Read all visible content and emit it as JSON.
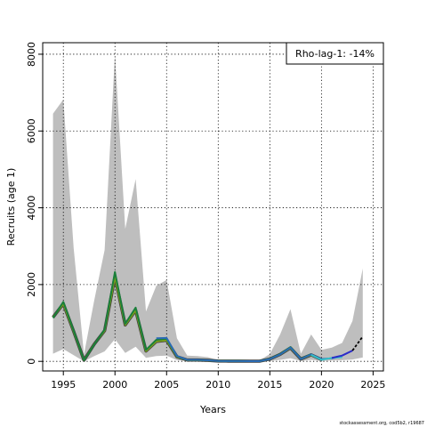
{
  "chart_data": {
    "type": "line",
    "xlabel": "Years",
    "ylabel": "Recruits (age 1)",
    "xlim": [
      1993,
      2026
    ],
    "ylim": [
      -250,
      8300
    ],
    "x_ticks": [
      1995,
      2000,
      2005,
      2010,
      2015,
      2020,
      2025
    ],
    "y_ticks": [
      0,
      2000,
      4000,
      6000,
      8000
    ],
    "grid": true,
    "grid_style": "dotted",
    "legend": {
      "text": "Rho-lag-1: -14%",
      "placement": "top-right"
    },
    "credit": "stockassessment.org, cod5b2, r19687",
    "colors": {
      "band": "#bebebe",
      "outline": "#404040",
      "main": "#7fa319",
      "peels": [
        "#1a7f3a",
        "#2a6bb4",
        "#36c0c8",
        "#2b2bc9"
      ],
      "terminal": "#000000"
    },
    "band": {
      "x": [
        1994,
        1995,
        1996,
        1997,
        1998,
        1999,
        2000,
        2001,
        2002,
        2003,
        2004,
        2005,
        2006,
        2007,
        2008,
        2009,
        2010,
        2011,
        2012,
        2013,
        2014,
        2015,
        2016,
        2017,
        2018,
        2019,
        2020,
        2021,
        2022,
        2023,
        2024
      ],
      "upper": [
        6450,
        6820,
        2950,
        180,
        1600,
        2900,
        8000,
        3450,
        4750,
        1300,
        1970,
        2120,
        600,
        150,
        140,
        110,
        30,
        25,
        20,
        20,
        25,
        190,
        700,
        1360,
        200,
        700,
        300,
        360,
        480,
        1050,
        2420
      ],
      "lower": [
        200,
        320,
        160,
        0,
        140,
        260,
        580,
        220,
        380,
        90,
        140,
        150,
        30,
        10,
        10,
        5,
        0,
        0,
        0,
        0,
        0,
        10,
        40,
        80,
        10,
        40,
        10,
        20,
        30,
        50,
        100
      ]
    },
    "series": [
      {
        "values_x": [
          1994,
          1995,
          1996,
          1997,
          1998,
          1999,
          2000,
          2001,
          2002,
          2003,
          2004,
          2005,
          2006,
          2007,
          2008,
          2009,
          2010,
          2011,
          2012,
          2013,
          2014,
          2015,
          2016,
          2017,
          2018,
          2019,
          2020
        ],
        "values_y": [
          1150,
          1500,
          780,
          30,
          450,
          800,
          2200,
          950,
          1330,
          270,
          520,
          550,
          120,
          35,
          35,
          25,
          10,
          8,
          8,
          5,
          5,
          60,
          180,
          350,
          60,
          170,
          50
        ],
        "color_key": "main"
      },
      {
        "values_x": [
          1994,
          1995,
          1996,
          1997,
          1998,
          1999,
          2000,
          2001,
          2002,
          2003,
          2004,
          2005,
          2006,
          2007,
          2008,
          2009,
          2010,
          2011,
          2012,
          2013,
          2014,
          2015,
          2016,
          2017,
          2018,
          2019
        ],
        "values_y": [
          1130,
          1550,
          800,
          30,
          440,
          830,
          2330,
          980,
          1400,
          300,
          560,
          590,
          130,
          38,
          38,
          27,
          10,
          8,
          8,
          5,
          5,
          65,
          190,
          370,
          65,
          190
        ],
        "color_key": "peels.0"
      },
      {
        "values_x": [
          2004,
          2005,
          2006,
          2007,
          2008,
          2009,
          2010,
          2011,
          2012,
          2013,
          2014,
          2015,
          2016,
          2017,
          2018,
          2019,
          2020,
          2021,
          2022
        ],
        "values_y": [
          600,
          610,
          140,
          40,
          40,
          28,
          10,
          8,
          8,
          5,
          5,
          60,
          180,
          360,
          60,
          180,
          60,
          80,
          130
        ],
        "color_key": "peels.1"
      },
      {
        "values_x": [
          2019,
          2020,
          2021,
          2022
        ],
        "values_y": [
          170,
          40,
          90,
          110
        ],
        "color_key": "peels.2"
      },
      {
        "values_x": [
          2021,
          2022,
          2023
        ],
        "values_y": [
          90,
          150,
          280
        ],
        "color_key": "peels.3"
      },
      {
        "values_x": [
          2023,
          2024
        ],
        "values_y": [
          280,
          650
        ],
        "color_key": "terminal"
      }
    ]
  }
}
